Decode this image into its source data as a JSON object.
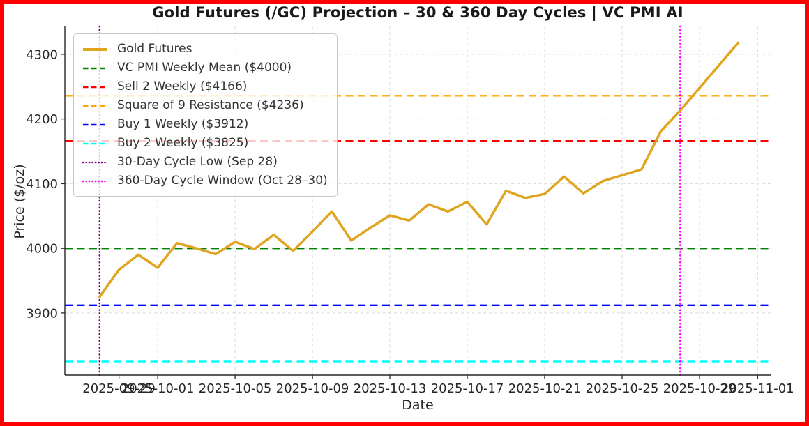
{
  "title": "Gold Futures (/GC) Projection – 30 & 360 Day Cycles | VC PMI AI",
  "axes": {
    "xlabel": "Date",
    "ylabel": "Price ($/oz)"
  },
  "frame_color": "#ff0000",
  "chart_data": {
    "type": "line",
    "title": "Gold Futures (/GC) Projection – 30 & 360 Day Cycles | VC PMI AI",
    "xlabel": "Date",
    "ylabel": "Price ($/oz)",
    "grid": true,
    "legend_position": "upper-left",
    "ylim": [
      3805,
      4343
    ],
    "dates": [
      "2025-09-28",
      "2025-09-29",
      "2025-09-30",
      "2025-10-01",
      "2025-10-02",
      "2025-10-03",
      "2025-10-04",
      "2025-10-05",
      "2025-10-06",
      "2025-10-07",
      "2025-10-08",
      "2025-10-09",
      "2025-10-10",
      "2025-10-11",
      "2025-10-12",
      "2025-10-13",
      "2025-10-14",
      "2025-10-15",
      "2025-10-16",
      "2025-10-17",
      "2025-10-18",
      "2025-10-19",
      "2025-10-20",
      "2025-10-21",
      "2025-10-22",
      "2025-10-23",
      "2025-10-24",
      "2025-10-25",
      "2025-10-26",
      "2025-10-27",
      "2025-10-28",
      "2025-10-29",
      "2025-10-30",
      "2025-10-31"
    ],
    "series": [
      {
        "name": "Gold Futures",
        "color": "#DFA520",
        "style": "solid",
        "values": [
          3925,
          3967,
          3990,
          3970,
          4008,
          4000,
          3991,
          4010,
          3999,
          4021,
          3996,
          4026,
          4057,
          4012,
          4032,
          4051,
          4043,
          4068,
          4057,
          4072,
          4037,
          4089,
          4078,
          4084,
          4111,
          4085,
          4104,
          4113,
          4122,
          4181,
          4213,
          4248,
          4283,
          4318
        ]
      }
    ],
    "hlines": [
      {
        "name": "VC PMI Weekly Mean",
        "value": 4000,
        "color": "#008000",
        "style": "dashed"
      },
      {
        "name": "Sell 2 Weekly",
        "value": 4166,
        "color": "#ff0000",
        "style": "dashed"
      },
      {
        "name": "Square of 9 Resistance",
        "value": 4236,
        "color": "#ffa500",
        "style": "dashed"
      },
      {
        "name": "Buy 1 Weekly",
        "value": 3912,
        "color": "#0000ff",
        "style": "dashed"
      },
      {
        "name": "Buy 2 Weekly",
        "value": 3825,
        "color": "#00ffff",
        "style": "dashed"
      }
    ],
    "vlines": [
      {
        "name": "30-Day Cycle Low",
        "date": "2025-09-28",
        "day_index": 0,
        "color": "#800080",
        "style": "dotted"
      },
      {
        "name": "360-Day Cycle Window",
        "date": "2025-10-28",
        "day_index": 30,
        "color": "#ff00ff",
        "style": "dotted"
      }
    ],
    "x_ticks": [
      {
        "label": "2025-09-29",
        "day_index": 1
      },
      {
        "label": "2025-10-01",
        "day_index": 3
      },
      {
        "label": "2025-10-05",
        "day_index": 7
      },
      {
        "label": "2025-10-09",
        "day_index": 11
      },
      {
        "label": "2025-10-13",
        "day_index": 15
      },
      {
        "label": "2025-10-17",
        "day_index": 19
      },
      {
        "label": "2025-10-21",
        "day_index": 23
      },
      {
        "label": "2025-10-25",
        "day_index": 27
      },
      {
        "label": "2025-10-29",
        "day_index": 31
      },
      {
        "label": "2025-11-01",
        "day_index": 34
      }
    ],
    "y_ticks": [
      3900,
      4000,
      4100,
      4200,
      4300
    ],
    "legend": [
      {
        "label": "Gold Futures",
        "color": "#DFA520",
        "style": "solid"
      },
      {
        "label": "VC PMI Weekly Mean ($4000)",
        "color": "#008000",
        "style": "dashed"
      },
      {
        "label": "Sell 2 Weekly ($4166)",
        "color": "#ff0000",
        "style": "dashed"
      },
      {
        "label": "Square of 9 Resistance ($4236)",
        "color": "#ffa500",
        "style": "dashed"
      },
      {
        "label": "Buy 1 Weekly ($3912)",
        "color": "#0000ff",
        "style": "dashed"
      },
      {
        "label": "Buy 2 Weekly ($3825)",
        "color": "#00ffff",
        "style": "dashed"
      },
      {
        "label": "30-Day Cycle Low (Sep 28)",
        "color": "#800080",
        "style": "dotted"
      },
      {
        "label": "360-Day Cycle Window (Oct 28–30)",
        "color": "#ff00ff",
        "style": "dotted"
      }
    ]
  }
}
